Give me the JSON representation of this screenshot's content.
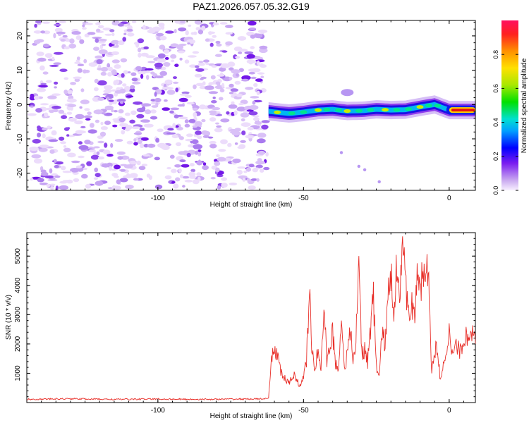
{
  "title": "PAZ1.2026.057.05.32.G19",
  "chart_data": [
    {
      "type": "heatmap",
      "title": "PAZ1.2026.057.05.32.G19",
      "xlabel": "Height of straight line (km)",
      "ylabel": "Frequency (Hz)",
      "xlim": [
        -145,
        9
      ],
      "ylim": [
        -25,
        24.5
      ],
      "xticks": [
        -100,
        -50,
        0
      ],
      "yticks": [
        20,
        10,
        0,
        -10,
        -20
      ],
      "noise_region_x": [
        -145,
        -62
      ],
      "signal_band": {
        "x": [
          -62,
          -55,
          -50,
          -45,
          -40,
          -35,
          -30,
          -25,
          -20,
          -15,
          -10,
          -5,
          0,
          9
        ],
        "freq_hz": [
          -2.0,
          -2.6,
          -2.2,
          -1.6,
          -1.4,
          -1.9,
          -1.8,
          -1.4,
          -1.6,
          -1.5,
          -0.7,
          0.0,
          -1.6,
          -1.6
        ]
      },
      "colorbar": {
        "label": "Normalized spectral amplitude",
        "range": [
          0.0,
          1.0
        ],
        "ticks": [
          0.0,
          0.2,
          0.4,
          0.6,
          0.8
        ]
      }
    },
    {
      "type": "line",
      "xlabel": "Height of straight line (km)",
      "ylabel": "SNR (10 * v/v)",
      "xlim": [
        -145,
        9
      ],
      "ylim": [
        0,
        5800
      ],
      "xticks": [
        -100,
        -50,
        0
      ],
      "yticks": [
        1000,
        2000,
        3000,
        4000,
        5000
      ],
      "line_color": "#e8302a",
      "series": [
        {
          "name": "SNR",
          "x": [
            -145,
            -130,
            -115,
            -100,
            -85,
            -70,
            -62,
            -61,
            -60,
            -59,
            -58,
            -57,
            -56,
            -55,
            -54,
            -53,
            -52,
            -51,
            -50,
            -49,
            -48,
            -47,
            -46,
            -45,
            -44,
            -43,
            -42,
            -41,
            -40,
            -39,
            -38,
            -37,
            -36,
            -35,
            -34,
            -33,
            -32,
            -31,
            -30,
            -29,
            -28,
            -27,
            -26,
            -25,
            -24,
            -23,
            -22,
            -21,
            -20,
            -19,
            -18,
            -17,
            -16,
            -15,
            -14,
            -13,
            -12,
            -11,
            -10,
            -9,
            -8,
            -7,
            -6,
            -5,
            -4,
            -3,
            -2,
            -1,
            0,
            1,
            2,
            3,
            4,
            5,
            6,
            7,
            8,
            9
          ],
          "y": [
            110,
            130,
            110,
            120,
            110,
            120,
            130,
            1500,
            1800,
            1700,
            1100,
            900,
            750,
            650,
            800,
            1000,
            700,
            500,
            950,
            1400,
            3750,
            1600,
            1200,
            1800,
            1100,
            3300,
            1450,
            1900,
            2400,
            1300,
            1200,
            2900,
            1200,
            1600,
            2450,
            1500,
            2000,
            4950,
            1700,
            1800,
            1400,
            2550,
            3600,
            1200,
            900,
            2450,
            2000,
            3500,
            4300,
            3300,
            4650,
            3900,
            5800,
            3800,
            3300,
            3500,
            2800,
            4100,
            3800,
            4500,
            4200,
            4600,
            900,
            1800,
            2000,
            700,
            1200,
            1500,
            2400,
            1700,
            2100,
            1900,
            1700,
            2200,
            2300,
            2200,
            2400,
            2000
          ]
        }
      ]
    }
  ]
}
